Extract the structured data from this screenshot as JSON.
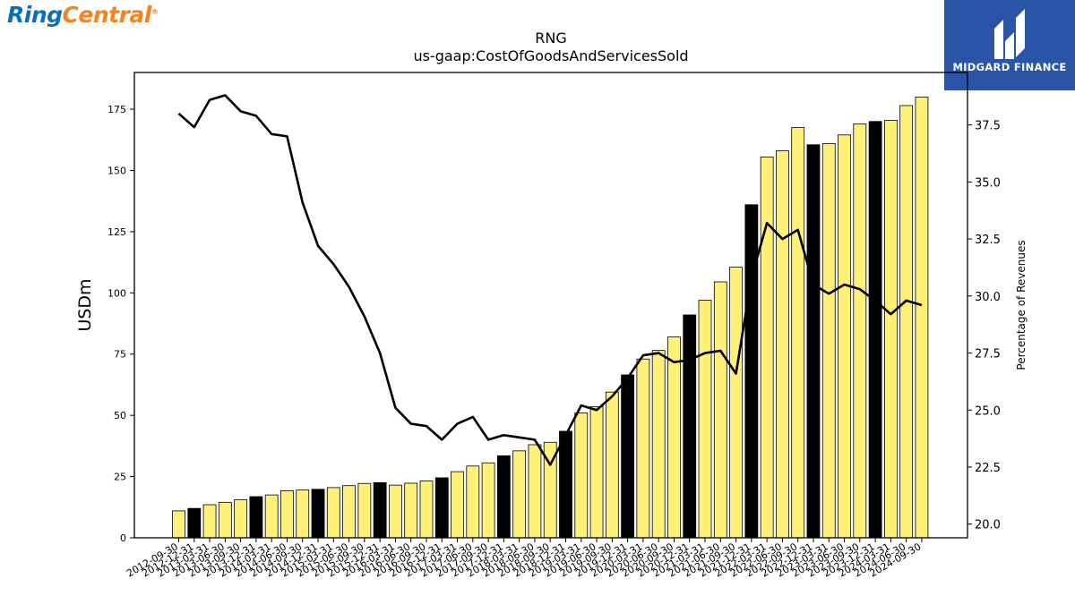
{
  "brand": {
    "logo_ring": "Ring",
    "logo_central": "Central",
    "logo_mark": "®"
  },
  "watermark": {
    "text": "MIDGARD FINANCE"
  },
  "colors": {
    "bar_fill": "#fff07a",
    "bar_highlight": "#000000",
    "line": "#000000"
  },
  "chart_data": {
    "type": "bar",
    "title": "RNG",
    "subtitle": "us-gaap:CostOfGoodsAndServicesSold",
    "ylabel": "USDm",
    "y2label": "Percentage of Revenues",
    "ylim": [
      0,
      190
    ],
    "y2lim": [
      19.4,
      39.8
    ],
    "yticks": [
      0,
      25,
      50,
      75,
      100,
      125,
      150,
      175
    ],
    "y2ticks": [
      20.0,
      22.5,
      25.0,
      27.5,
      30.0,
      32.5,
      35.0,
      37.5
    ],
    "categories": [
      "2012-09-30",
      "2012-12-31",
      "2013-03-31",
      "2013-06-30",
      "2013-09-30",
      "2013-12-31",
      "2014-03-31",
      "2014-06-30",
      "2014-09-30",
      "2014-12-31",
      "2015-03-31",
      "2015-06-30",
      "2015-09-30",
      "2015-12-31",
      "2016-03-31",
      "2016-06-30",
      "2016-09-30",
      "2016-12-31",
      "2017-03-31",
      "2017-06-30",
      "2017-09-30",
      "2017-12-31",
      "2018-03-31",
      "2018-06-30",
      "2018-09-30",
      "2018-12-31",
      "2019-03-31",
      "2019-06-30",
      "2019-09-30",
      "2019-12-31",
      "2020-03-31",
      "2020-06-30",
      "2020-09-30",
      "2020-12-31",
      "2021-03-31",
      "2021-06-30",
      "2021-09-30",
      "2021-12-31",
      "2022-03-31",
      "2022-06-30",
      "2022-09-30",
      "2022-12-31",
      "2023-03-31",
      "2023-06-30",
      "2023-09-30",
      "2023-12-31",
      "2024-03-31",
      "2024-06-30",
      "2024-09-30"
    ],
    "series": [
      {
        "type": "bar",
        "axis": "left",
        "values": [
          11.0,
          12.0,
          13.5,
          14.5,
          15.5,
          16.8,
          17.5,
          19.2,
          19.5,
          19.8,
          20.5,
          21.3,
          22.2,
          22.5,
          21.5,
          22.3,
          23.2,
          24.5,
          27.0,
          29.3,
          30.6,
          33.5,
          35.5,
          38.0,
          39.0,
          43.5,
          51.0,
          53.5,
          59.5,
          66.5,
          73.0,
          76.5,
          82.0,
          91.0,
          97.0,
          104.5,
          110.5,
          136.0,
          155.5,
          158.0,
          167.5,
          160.5,
          161.0,
          164.5,
          169.0,
          170.0,
          170.5,
          176.5,
          180.0
        ],
        "highlight": [
          false,
          true,
          false,
          false,
          false,
          true,
          false,
          false,
          false,
          true,
          false,
          false,
          false,
          true,
          false,
          false,
          false,
          true,
          false,
          false,
          false,
          true,
          false,
          false,
          false,
          true,
          false,
          false,
          false,
          true,
          false,
          false,
          false,
          true,
          false,
          false,
          false,
          true,
          false,
          false,
          false,
          true,
          false,
          false,
          false,
          true,
          false,
          false,
          false
        ]
      },
      {
        "type": "line",
        "axis": "right",
        "values": [
          38.0,
          37.4,
          38.6,
          38.8,
          38.1,
          37.9,
          37.1,
          37.0,
          34.1,
          32.2,
          31.4,
          30.4,
          29.1,
          27.5,
          25.1,
          24.4,
          24.3,
          23.7,
          24.4,
          24.7,
          23.7,
          23.9,
          23.8,
          23.7,
          22.6,
          23.9,
          25.2,
          25.0,
          25.6,
          26.4,
          27.4,
          27.5,
          27.1,
          27.2,
          27.5,
          27.6,
          26.6,
          30.8,
          33.2,
          32.5,
          32.9,
          30.5,
          30.1,
          30.5,
          30.3,
          29.8,
          29.2,
          29.8,
          29.6
        ]
      }
    ]
  }
}
